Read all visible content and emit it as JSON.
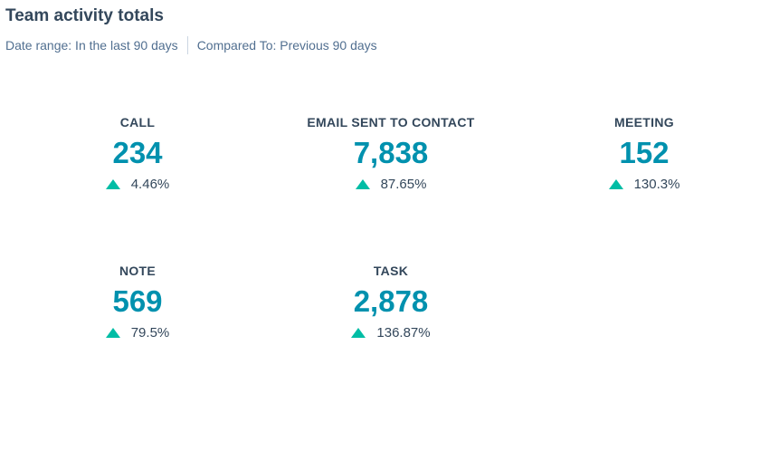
{
  "report": {
    "title": "Team activity totals",
    "date_range": "Date range: In the last 90 days",
    "compared_to": "Compared To: Previous 90 days"
  },
  "metrics": [
    {
      "label": "CALL",
      "value": "234",
      "change": "4.46%",
      "direction": "up"
    },
    {
      "label": "EMAIL SENT TO CONTACT",
      "value": "7,838",
      "change": "87.65%",
      "direction": "up"
    },
    {
      "label": "MEETING",
      "value": "152",
      "change": "130.3%",
      "direction": "up"
    },
    {
      "label": "NOTE",
      "value": "569",
      "change": "79.5%",
      "direction": "up"
    },
    {
      "label": "TASK",
      "value": "2,878",
      "change": "136.87%",
      "direction": "up"
    }
  ],
  "colors": {
    "value": "#0091ae",
    "increase_icon": "#00bda5",
    "text": "#33475b",
    "muted_text": "#516f90"
  },
  "icons": {
    "increase": "triangle-up-icon"
  }
}
